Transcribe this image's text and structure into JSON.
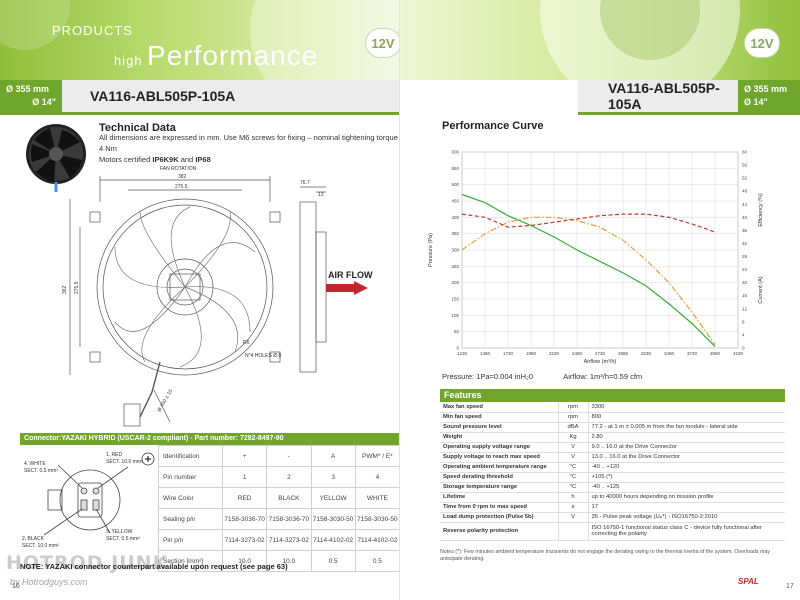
{
  "left_page": {
    "banner_small": "PRODUCTS",
    "banner_small2": "high",
    "banner_big": "Performance",
    "voltage": "12V",
    "size_mm": "Ø 355 mm",
    "size_in": "Ø 14\"",
    "model": "VA116-ABL505P-105A",
    "tech_title": "Technical Data",
    "tech_line1": "All dimensions are expressed in mm. Use M6 screws for fixing – nominal tightening torque 4 Nm",
    "tech_line2_prefix": "Motors certified ",
    "cert1": "IP6K9K",
    "tech_and": " and ",
    "cert2": "IP68",
    "dims": {
      "fan_rotation": "FAN ROTATION",
      "d1": "382",
      "d2": "275.5",
      "d3": "76.7",
      "d4": "13",
      "d5": "362",
      "d6": "275.5",
      "r": "R6",
      "holes": "N°4 HOLES Ø 8",
      "cable": "Ø 450 ± 10"
    },
    "airflow_label": "AIR FLOW",
    "connector_header": "Connector:YAZAKI HYBRID (USCAR-2 compliant) - Part number: 7282-8497-90",
    "wire_labels": {
      "white": "4. WHITE",
      "white_sect": "SECT. 0.5 mm²",
      "red": "1. RED",
      "red_sect": "SECT. 10.0 mm²",
      "black": "2. BLACK",
      "black_sect": "SECT. 10.0 mm²",
      "yellow": "3. YELLOW",
      "yellow_sect": "SECT. 0.5 mm²"
    },
    "connector_table": {
      "rows": [
        {
          "label": "Identification",
          "cells": [
            "+",
            "-",
            "A",
            "PWM* / E*"
          ]
        },
        {
          "label": "Pin number",
          "cells": [
            "1",
            "2",
            "3",
            "4"
          ]
        },
        {
          "label": "Wire Color",
          "cells": [
            "RED",
            "BLACK",
            "YELLOW",
            "WHITE"
          ]
        },
        {
          "label": "Sealing p/n",
          "cells": [
            "7158-3036-70",
            "7158-3036-70",
            "7158-3030-50",
            "7158-3030-50"
          ]
        },
        {
          "label": "Pin p/n",
          "cells": [
            "7114-3273-02",
            "7114-3273-02",
            "7114-4102-02",
            "7114-4102-02"
          ]
        },
        {
          "label": "Section [mm²]",
          "cells": [
            "10.0",
            "10.0",
            "0.5",
            "0.5"
          ]
        }
      ]
    },
    "note": "NOTE: YAZAKI connector counterpart available upon request (see page 63)",
    "page_number": "16",
    "watermark": "HOTROD JUNK",
    "watermark_sub": "by Hotrodguys.com"
  },
  "right_page": {
    "voltage": "12V",
    "model": "VA116-ABL505P-105A",
    "size_mm": "Ø 355 mm",
    "size_in": "Ø 14\"",
    "perf_title": "Performance Curve",
    "pressure_note": "Pressure: 1Pa=0.004 inH₂0",
    "airflow_note": "Airflow: 1m³/h=0.59 cfm",
    "features_header": "Features",
    "features": [
      {
        "k": "Max fan speed",
        "u": "rpm",
        "v": "3300"
      },
      {
        "k": "Min fan speed",
        "u": "rpm",
        "v": "800"
      },
      {
        "k": "Sound pressure level",
        "u": "dBA",
        "v": "77.2 - at 1 m ± 0.005 m from the fan module - lateral side"
      },
      {
        "k": "Weight",
        "u": "Kg",
        "v": "2.80"
      },
      {
        "k": "Operating supply voltage range",
        "u": "V",
        "v": "9.0 .. 16.0 at the Drive Connector"
      },
      {
        "k": "Supply voltage to reach max speed",
        "u": "V",
        "v": "13.0 .. 16.0 at the Drive Connector"
      },
      {
        "k": "Operating ambient temperature range",
        "u": "°C",
        "v": "-40 .. +120"
      },
      {
        "k": "Speed derating threshold",
        "u": "°C",
        "v": "+105 (*)"
      },
      {
        "k": "Storage temperature range",
        "u": "°C",
        "v": "-40 .. +125"
      },
      {
        "k": "Lifetime",
        "u": "h",
        "v": "up to 40000 hours depending on mission profile"
      },
      {
        "k": "Time from 0 rpm to max speed",
        "u": "s",
        "v": "17"
      },
      {
        "k": "Load dump protection (Pulse 5b)",
        "u": "V",
        "v": "35 - Pulse peak voltage (Uₚ*) - ISO16750-2:2010"
      },
      {
        "k": "Reverse polarity protection",
        "u": "",
        "v": "ISO 16750-1 functional status class C - device fully functional after correcting the polarity",
        "tall": true
      }
    ],
    "features_note": "Notes (*): Few minutes ambient temperature transients do not engage the derating owing to the thermal inertia of the system. Overloads may anticipate derating.",
    "logo": "SPAL",
    "page_number": "17"
  },
  "chart_data": {
    "type": "line",
    "title": "",
    "xlabel": "Airflow (m³/h)",
    "ylabel": "Pressure (Pa)",
    "y2label_eff": "Efficiency (%)",
    "y2label_cur": "Current (A)",
    "x_ticks": [
      1230,
      1480,
      1730,
      1980,
      2230,
      2480,
      2730,
      2980,
      3230,
      3480,
      3730,
      3980,
      4230
    ],
    "y_ticks": [
      0,
      50,
      100,
      150,
      200,
      250,
      300,
      350,
      400,
      450,
      500,
      550,
      600
    ],
    "y2_ticks": [
      0,
      4,
      8,
      12,
      16,
      20,
      24,
      28,
      32,
      36,
      40,
      44,
      48,
      52,
      56,
      60
    ],
    "xlim": [
      1230,
      4230
    ],
    "ylim": [
      0,
      600
    ],
    "y2lim": [
      0,
      60
    ],
    "grid": true,
    "colors": {
      "pressure": "#3aab3a",
      "efficiency": "#e0a040",
      "current": "#c0392b"
    },
    "series": [
      {
        "name": "Pressure",
        "axis": "left",
        "x": [
          1230,
          1480,
          1730,
          1980,
          2230,
          2480,
          2730,
          2980,
          3230,
          3480,
          3730,
          3980
        ],
        "values": [
          470,
          445,
          405,
          375,
          340,
          300,
          265,
          230,
          190,
          135,
          75,
          5
        ]
      },
      {
        "name": "Efficiency",
        "axis": "right",
        "x": [
          1230,
          1480,
          1730,
          1980,
          2230,
          2480,
          2730,
          2980,
          3230,
          3480,
          3730,
          3980
        ],
        "values": [
          30,
          35,
          38.5,
          40,
          40,
          39,
          37,
          33,
          27,
          20,
          11,
          1
        ]
      },
      {
        "name": "Current",
        "axis": "right",
        "x": [
          1230,
          1480,
          1730,
          1980,
          2230,
          2480,
          2730,
          2980,
          3230,
          3480,
          3730,
          3980
        ],
        "values": [
          41,
          40,
          37,
          37.5,
          38.5,
          39.5,
          40.5,
          41,
          41,
          40,
          38,
          35.5
        ]
      }
    ]
  }
}
